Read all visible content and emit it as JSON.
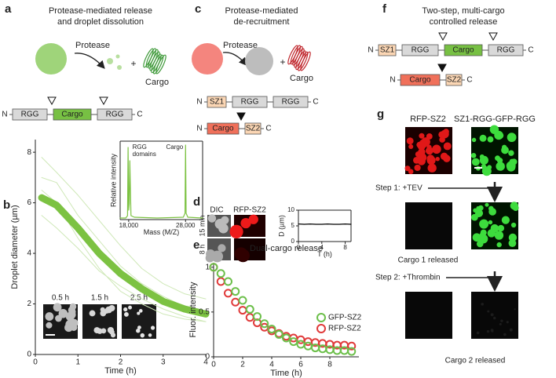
{
  "panels": {
    "a": {
      "label": "a",
      "title": [
        "Protease-mediated release",
        "and droplet dissolution"
      ],
      "protease": "Protease",
      "cargo": "Cargo",
      "construct": [
        "N",
        "RGG",
        "Cargo",
        "RGG",
        "C"
      ]
    },
    "b": {
      "label": "b",
      "times": [
        "0.5 h",
        "1.5 h",
        "2.5 h"
      ]
    },
    "c": {
      "label": "c",
      "title": [
        "Protease-mediated",
        "de-recruitment"
      ],
      "protease": "Protease",
      "cargo": "Cargo",
      "construct1": [
        "N",
        "SZ1",
        "RGG",
        "RGG",
        "C"
      ],
      "construct2": [
        "N",
        "Cargo",
        "SZ2",
        "C"
      ]
    },
    "d": {
      "label": "d",
      "columns": [
        "DIC",
        "RFP-SZ2"
      ],
      "rows": [
        "15 min",
        "8 h"
      ]
    },
    "e": {
      "label": "e"
    },
    "f": {
      "label": "f",
      "title": [
        "Two-step, multi-cargo",
        "controlled release"
      ],
      "construct1": [
        "N",
        "SZ1",
        "RGG",
        "Cargo",
        "RGG",
        "C"
      ],
      "construct2": [
        "N",
        "Cargo",
        "SZ2",
        "C"
      ]
    },
    "g": {
      "label": "g",
      "columns": [
        "RFP-SZ2",
        "SZ1-RGG-GFP-RGG"
      ],
      "step1": "Step 1: +TEV",
      "result1": "Cargo 1 released",
      "step2": "Step 2: +Thrombin",
      "result2": "Cargo 2 released"
    }
  },
  "chart_data": [
    {
      "type": "line",
      "xlabel": "Time (h)",
      "ylabel": "Droplet diameter (µm)",
      "x": [
        0.15,
        0.5,
        1,
        1.5,
        2,
        2.5,
        3,
        3.5,
        4
      ],
      "series": [
        {
          "color": "#7cc242",
          "values": [
            6.2,
            5.9,
            5.0,
            4.0,
            3.2,
            2.6,
            2.1,
            1.8,
            1.6
          ]
        },
        {
          "color": "#cfe8b8",
          "values": [
            7.8,
            7.2,
            6.3,
            5.3,
            4.3,
            3.4,
            2.8,
            2.4,
            2.2
          ]
        },
        {
          "color": "#cfe8b8",
          "values": [
            7.0,
            6.8,
            5.5,
            4.5,
            3.5,
            2.8,
            2.3,
            1.9,
            1.7
          ]
        },
        {
          "color": "#cfe8b8",
          "values": [
            6.5,
            6.0,
            4.6,
            3.4,
            2.5,
            2.0,
            1.6,
            1.4,
            1.3
          ]
        },
        {
          "color": "#cfe8b8",
          "values": [
            5.5,
            5.0,
            4.2,
            3.3,
            2.7,
            2.2,
            1.8,
            1.5,
            1.3
          ]
        }
      ],
      "xlim": [
        0,
        4
      ],
      "ylim": [
        0,
        8.5
      ],
      "xticks": [
        0,
        1,
        2,
        3,
        4
      ],
      "yticks": [
        0,
        2,
        4,
        6,
        8
      ]
    },
    {
      "type": "line",
      "xlabel": "Mass (M/Z)",
      "ylabel": "Relative intensity",
      "annotations": [
        [
          "RGG",
          "domains"
        ],
        [
          "Cargo"
        ]
      ],
      "x": [
        16500,
        17500,
        17800,
        17900,
        18000,
        18100,
        18200,
        18400,
        19000,
        23000,
        27600,
        27900,
        28000,
        28100,
        28400,
        31000
      ],
      "series": [
        {
          "color": "#7cc242",
          "values": [
            0.02,
            0.02,
            0.05,
            0.92,
            0.12,
            0.2,
            0.75,
            0.05,
            0.03,
            0.02,
            0.03,
            0.08,
            0.95,
            0.08,
            0.03,
            0.02
          ]
        }
      ],
      "xlim": [
        16500,
        31000
      ],
      "ylim": [
        0,
        1
      ],
      "xticks": [
        {
          "value": 18000,
          "label": "18,000"
        },
        {
          "value": 28000,
          "label": "28,000"
        }
      ]
    },
    {
      "type": "line",
      "xlabel": "T (h)",
      "ylabel": "D (µm)",
      "x": [
        0,
        1,
        2,
        3,
        4,
        5,
        6,
        7,
        8,
        9
      ],
      "series": [
        {
          "color": "#000000",
          "values": [
            5.6,
            5.5,
            5.6,
            5.5,
            5.5,
            5.6,
            5.5,
            5.5,
            5.6,
            5.5
          ]
        }
      ],
      "xlim": [
        0,
        9
      ],
      "ylim": [
        0,
        10
      ],
      "xticks": [
        0,
        4,
        8
      ],
      "yticks": [
        0,
        5,
        10
      ]
    },
    {
      "type": "scatter",
      "title": "Dual-cargo release",
      "xlabel": "Time (h)",
      "ylabel": "Fluor. intensity",
      "legend": "right",
      "x": [
        0,
        0.5,
        1,
        1.5,
        2,
        2.5,
        3,
        3.5,
        4,
        4.5,
        5,
        5.5,
        6,
        6.5,
        7,
        7.5,
        8,
        8.5,
        9,
        9.5
      ],
      "series": [
        {
          "name": "GFP-SZ2",
          "color": "#6cbf4a",
          "values": [
            1.0,
            0.93,
            0.84,
            0.73,
            0.63,
            0.53,
            0.45,
            0.37,
            0.31,
            0.25,
            0.21,
            0.17,
            0.14,
            0.12,
            0.1,
            0.09,
            0.08,
            0.07,
            0.07,
            0.06
          ]
        },
        {
          "name": "RFP-SZ2",
          "color": "#e03a3a",
          "values": [
            1.0,
            0.84,
            0.71,
            0.61,
            0.52,
            0.44,
            0.38,
            0.33,
            0.29,
            0.26,
            0.23,
            0.21,
            0.19,
            0.17,
            0.16,
            0.15,
            0.14,
            0.13,
            0.13,
            0.12
          ]
        }
      ],
      "xlim": [
        0,
        10
      ],
      "ylim": [
        0,
        1.05
      ],
      "xticks": [
        0,
        2,
        4,
        6,
        8
      ],
      "yticks": [
        0,
        {
          "value": 0.5,
          "label": "0.5"
        },
        1
      ]
    }
  ]
}
